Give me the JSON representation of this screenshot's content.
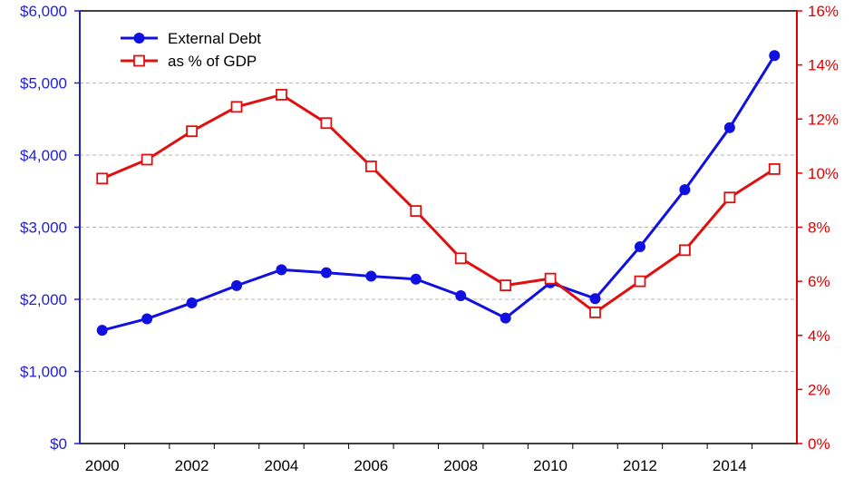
{
  "chart_data": {
    "type": "line",
    "x": [
      2000,
      2001,
      2002,
      2003,
      2004,
      2005,
      2006,
      2007,
      2008,
      2009,
      2010,
      2011,
      2012,
      2013,
      2014,
      2015
    ],
    "x_tick_labels": [
      "2000",
      "2002",
      "2004",
      "2006",
      "2008",
      "2010",
      "2012",
      "2014"
    ],
    "y_left_tick_labels": [
      "$0",
      "$1,000",
      "$2,000",
      "$3,000",
      "$4,000",
      "$5,000",
      "$6,000"
    ],
    "y_right_tick_labels": [
      "0%",
      "2%",
      "4%",
      "6%",
      "8%",
      "10%",
      "12%",
      "14%",
      "16%"
    ],
    "ylim_left": [
      0,
      6000
    ],
    "ylim_right": [
      0,
      16
    ],
    "xlim": [
      1999.5,
      2015.5
    ],
    "grid": "horizontal dashed",
    "legend_position": "top-left",
    "series": [
      {
        "name": "External Debt",
        "axis": "left",
        "color": "#1010e0",
        "marker": "filled-circle",
        "values": [
          1570,
          1730,
          1950,
          2190,
          2410,
          2370,
          2320,
          2280,
          2050,
          1740,
          2230,
          2010,
          2730,
          3520,
          4380,
          5380
        ]
      },
      {
        "name": "as % of GDP",
        "axis": "right",
        "color": "#e01010",
        "marker": "open-square",
        "values": [
          9.8,
          10.5,
          11.55,
          12.45,
          12.9,
          11.85,
          10.25,
          8.6,
          6.85,
          5.85,
          6.1,
          4.85,
          6.0,
          7.15,
          9.1,
          10.15
        ]
      }
    ]
  }
}
